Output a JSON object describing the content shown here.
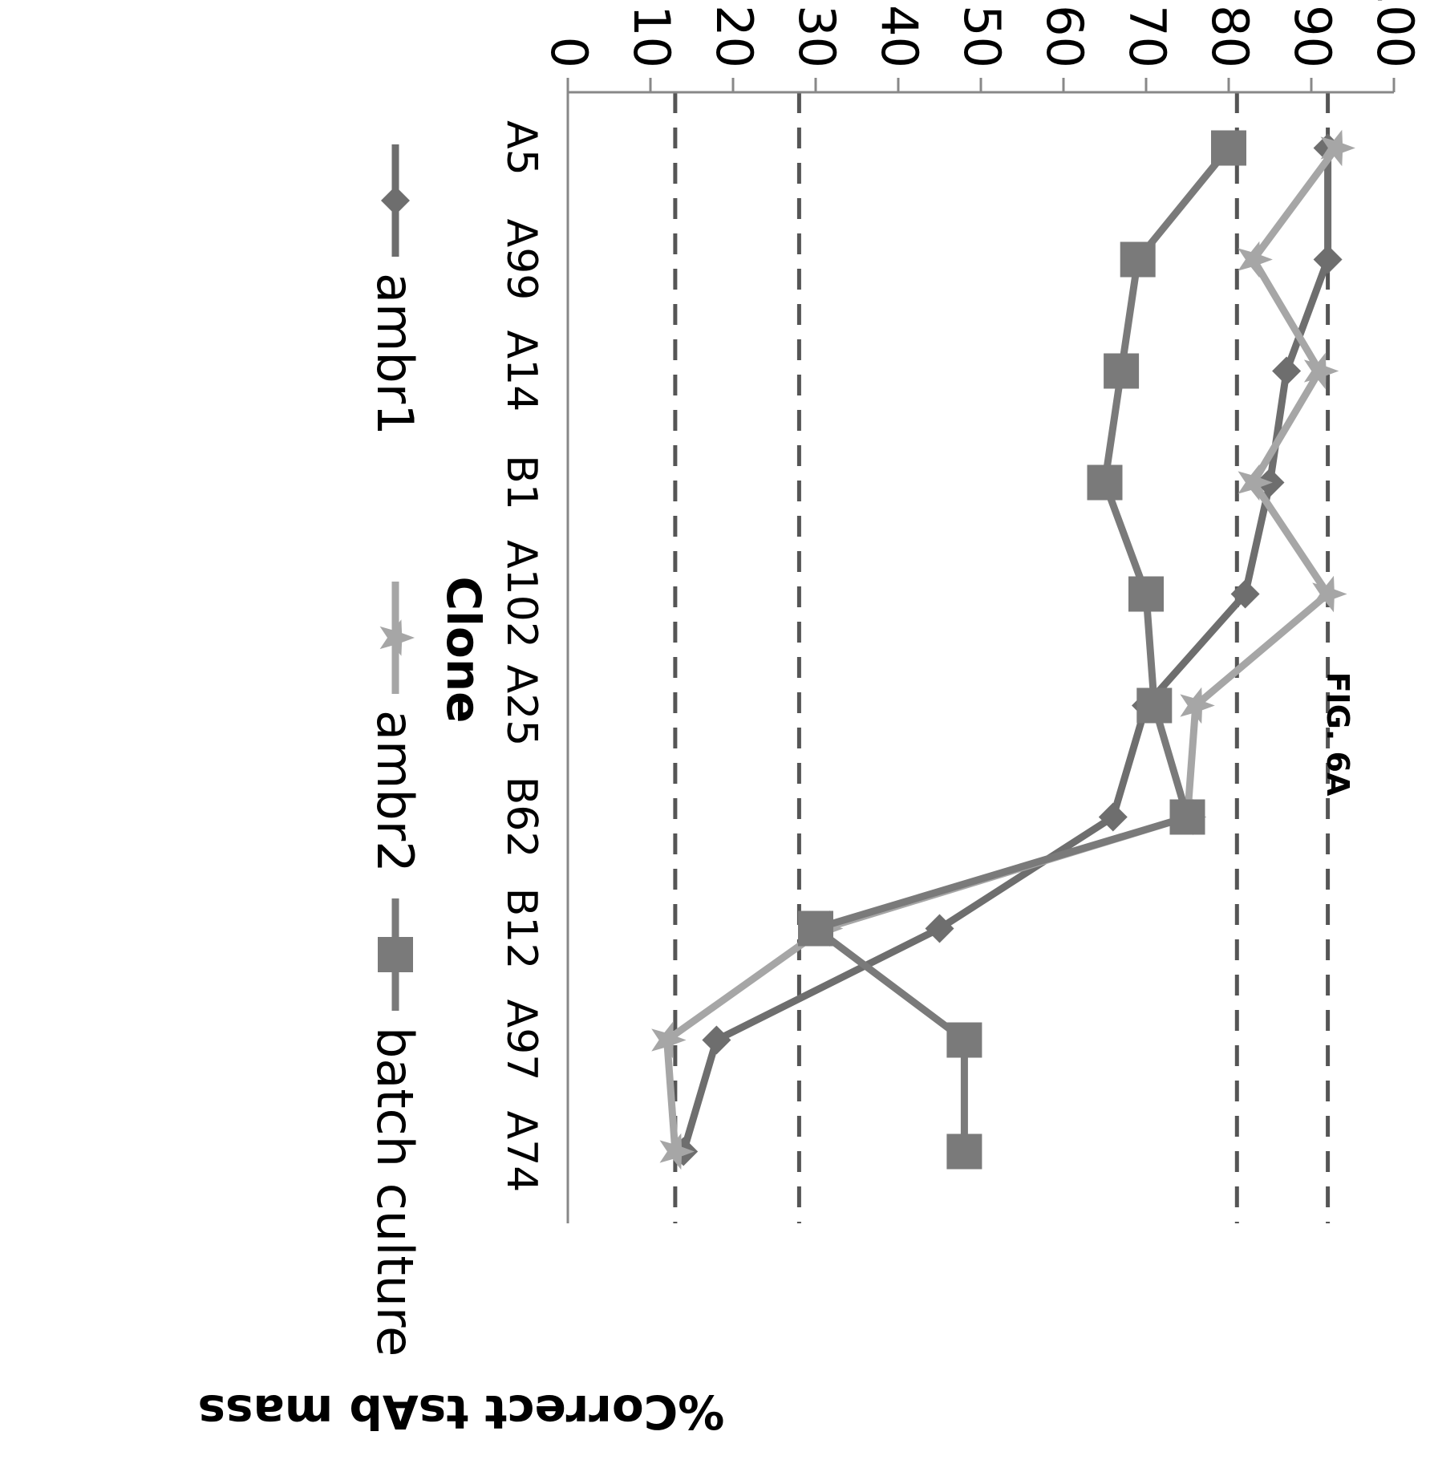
{
  "figure_label": "FIG. 6A",
  "chart_data": {
    "type": "line",
    "xlabel": "Clone",
    "ylabel": "%Correct tsAb mass",
    "categories": [
      "A5",
      "A99",
      "A14",
      "B1",
      "A102",
      "A25",
      "B62",
      "B12",
      "A97",
      "A74"
    ],
    "ylim": [
      0,
      100
    ],
    "yticks": [
      0,
      10,
      20,
      30,
      40,
      50,
      60,
      70,
      80,
      90,
      100
    ],
    "grid": false,
    "legend_position": "bottom",
    "reference_lines": [
      92,
      81,
      28,
      13
    ],
    "series": [
      {
        "name": "ambr1",
        "marker": "diamond",
        "color": "#6e6e6e",
        "values": [
          92,
          92,
          87,
          85,
          82,
          70,
          66,
          45,
          18,
          14
        ]
      },
      {
        "name": "ambr2",
        "marker": "star",
        "color": "#a6a6a6",
        "values": [
          93,
          83,
          91,
          83,
          92,
          76,
          75,
          31,
          12,
          13
        ]
      },
      {
        "name": "batch culture",
        "marker": "square",
        "color": "#7a7a7a",
        "values": [
          80,
          69,
          67,
          65,
          70,
          71,
          75,
          30,
          48,
          48
        ]
      }
    ]
  }
}
